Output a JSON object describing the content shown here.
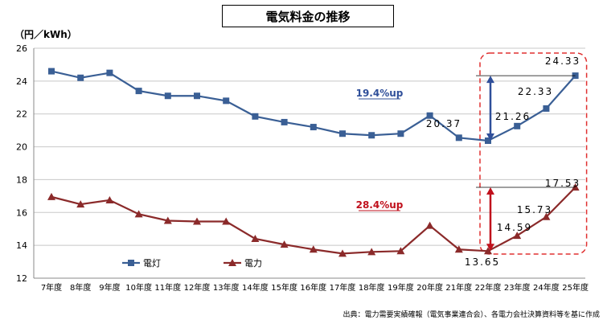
{
  "page": {
    "title": "電気料金の推移",
    "unit": "（円／kWh）",
    "source": "出典：電力需要実績確報（電気事業連合会）、各電力会社決算資料等を基に作成"
  },
  "chart_data": {
    "type": "line",
    "title": "電気料金の推移",
    "ylabel": "（円／kWh）",
    "ylim": [
      12,
      26
    ],
    "yticks": [
      12,
      14,
      16,
      18,
      20,
      22,
      24,
      26
    ],
    "grid": "horizontal",
    "legend_placement": "bottom-left",
    "categories": [
      "7年度",
      "8年度",
      "9年度",
      "10年度",
      "11年度",
      "12年度",
      "13年度",
      "14年度",
      "15年度",
      "16年度",
      "17年度",
      "18年度",
      "19年度",
      "20年度",
      "21年度",
      "22年度",
      "23年度",
      "24年度",
      "25年度"
    ],
    "series": [
      {
        "name": "電灯",
        "color": "#3a5f95",
        "marker": "square",
        "values": [
          24.6,
          24.2,
          24.5,
          23.4,
          23.1,
          23.1,
          22.8,
          21.85,
          21.5,
          21.2,
          20.8,
          20.7,
          20.8,
          21.9,
          20.55,
          20.37,
          21.26,
          22.33,
          24.33
        ]
      },
      {
        "name": "電力",
        "color": "#8b2a2a",
        "marker": "triangle",
        "values": [
          16.95,
          16.5,
          16.75,
          15.9,
          15.5,
          15.45,
          15.45,
          14.4,
          14.05,
          13.75,
          13.5,
          13.6,
          13.65,
          15.2,
          13.75,
          13.65,
          14.59,
          15.73,
          17.53
        ]
      }
    ],
    "data_labels": [
      {
        "series": 0,
        "index": 15,
        "text": "20.37"
      },
      {
        "series": 0,
        "index": 16,
        "text": "21.26"
      },
      {
        "series": 0,
        "index": 17,
        "text": "22.33"
      },
      {
        "series": 0,
        "index": 18,
        "text": "24.33"
      },
      {
        "series": 1,
        "index": 15,
        "text": "13.65"
      },
      {
        "series": 1,
        "index": 16,
        "text": "14.59"
      },
      {
        "series": 1,
        "index": 17,
        "text": "15.73"
      },
      {
        "series": 1,
        "index": 18,
        "text": "17.53"
      }
    ],
    "annotations": [
      {
        "text": "19.4%up",
        "color": "#2f4f9a",
        "series": 0,
        "from_index": 15,
        "to_index": 18
      },
      {
        "text": "28.4%up",
        "color": "#c0101c",
        "series": 1,
        "from_index": 15,
        "to_index": 18
      }
    ],
    "highlight": {
      "from_index": 15,
      "to_index": 18,
      "color": "#e03030",
      "style": "dashed"
    }
  }
}
